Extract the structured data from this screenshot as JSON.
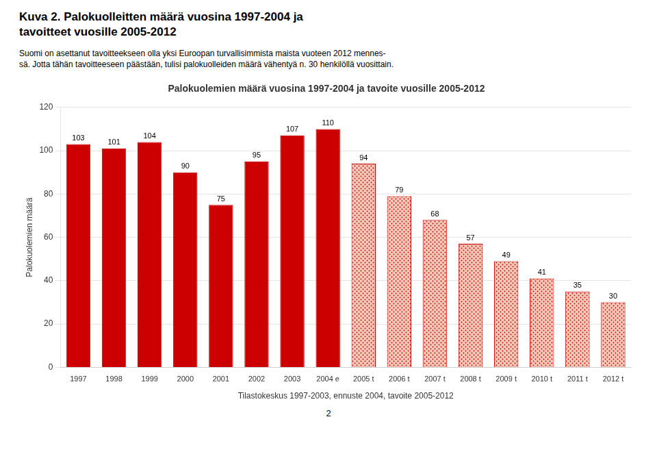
{
  "page_title": [
    "Kuva 2. Palokuolleitten määrä vuosina 1997-2004 ja",
    "tavoitteet vuosille 2005-2012"
  ],
  "subtitle": [
    "Suomi on asettanut tavoitteekseen olla yksi Euroopan turvallisimmista maista vuoteen 2012 mennes-",
    "sä. Jotta tähän tavoitteeseen päästään, tulisi palokuolleiden määrä vähentyä n. 30 henkilöllä vuosittain."
  ],
  "footer": "2",
  "chart_data": {
    "type": "bar",
    "title": "Palokuolemien määrä vuosina 1997-2004 ja tavoite vuosille 2005-2012",
    "ylabel": "Palokuolemien määrä",
    "xlabel": "Tilastokeskus 1997-2003, ennuste 2004, tavoite 2005-2012",
    "categories": [
      "1997",
      "1998",
      "1999",
      "2000",
      "2001",
      "2002",
      "2003",
      "2004 e",
      "2005 t",
      "2006 t",
      "2007 t",
      "2008 t",
      "2009 t",
      "2010 t",
      "2011 t",
      "2012 t"
    ],
    "values": [
      103,
      101,
      104,
      90,
      75,
      95,
      107,
      110,
      94,
      79,
      68,
      57,
      49,
      41,
      35,
      30
    ],
    "color": "#cc0000",
    "colors": [
      "#cc0000",
      "#cc0000",
      "#cc0000",
      "#cc0000",
      "#cc0000",
      "#cc0000",
      "#cc0000",
      "#cc0000",
      "#f2c8b8",
      "#f2c8b8",
      "#f2c8b8",
      "#f2c8b8",
      "#f2c8b8",
      "#f2c8b8",
      "#f2c8b8",
      "#f2c8b8"
    ],
    "ylim": [
      0,
      120
    ],
    "yticks": [
      0,
      20,
      40,
      60,
      80,
      100,
      120
    ],
    "grid": true,
    "data_labels": true
  }
}
